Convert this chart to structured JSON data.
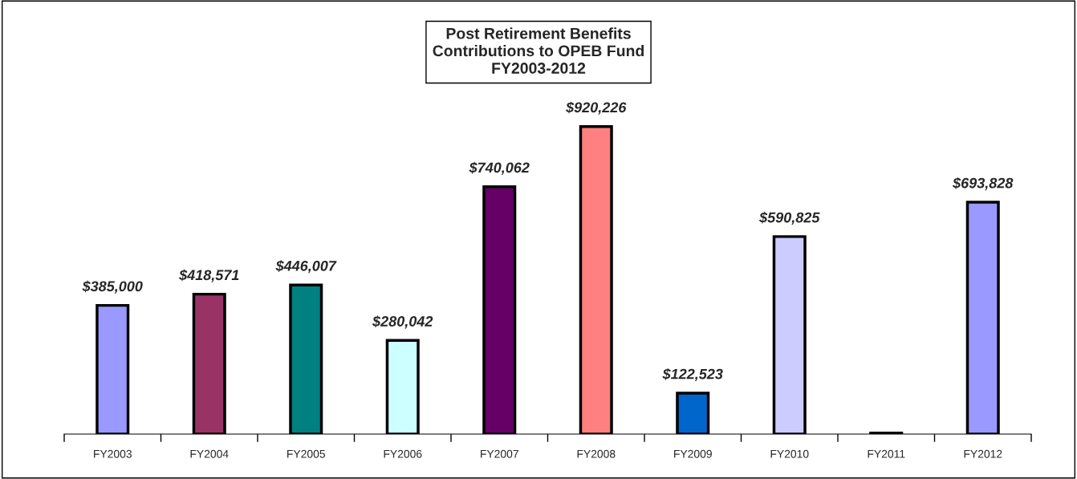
{
  "chart_data": {
    "type": "bar",
    "title": "Post Retirement Benefits\nContributions to OPEB Fund\nFY2003-2012",
    "categories": [
      "FY2003",
      "FY2004",
      "FY2005",
      "FY2006",
      "FY2007",
      "FY2008",
      "FY2009",
      "FY2010",
      "FY2011",
      "FY2012"
    ],
    "values": [
      385000,
      418571,
      446007,
      280042,
      740062,
      920226,
      122523,
      590825,
      3000,
      693828
    ],
    "value_labels": [
      "$385,000",
      "$418,571",
      "$446,007",
      "$280,042",
      "$740,062",
      "$920,226",
      "$122,523",
      "$590,825",
      null,
      "$693,828"
    ],
    "colors": [
      "#9999ff",
      "#993366",
      "#008080",
      "#ccffff",
      "#660066",
      "#ff8080",
      "#0066cc",
      "#ccccff",
      "#000080",
      "#9999ff"
    ],
    "tick_labels": "x",
    "grid": false,
    "legend": false
  }
}
